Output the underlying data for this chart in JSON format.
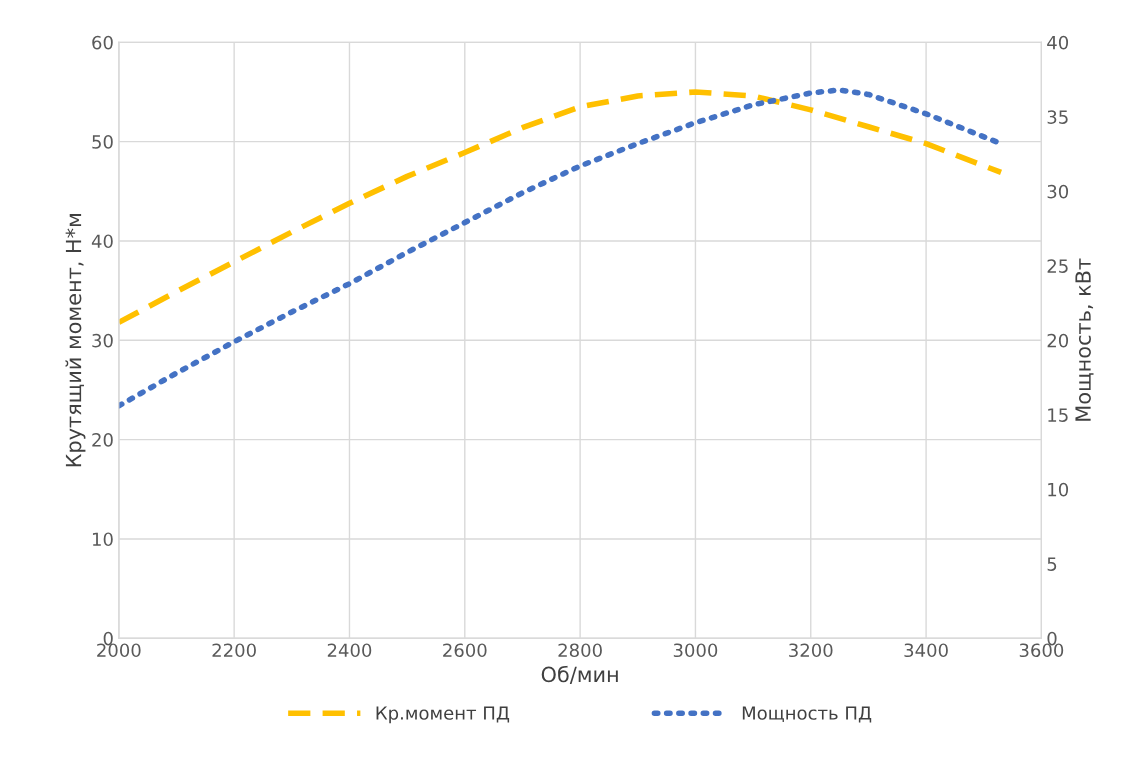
{
  "chart_data": {
    "type": "line",
    "xlabel": "Об/мин",
    "ylabel": "Крутящий момент, Н*м",
    "y2label": "Мощность, кВт",
    "xlim": [
      2000,
      3600
    ],
    "xticks": [
      2000,
      2200,
      2400,
      2600,
      2800,
      3000,
      3200,
      3400,
      3600
    ],
    "ylim": [
      0,
      60
    ],
    "yticks": [
      0,
      10,
      20,
      30,
      40,
      50,
      60
    ],
    "y2lim": [
      0,
      40
    ],
    "y2ticks": [
      0,
      5,
      10,
      15,
      20,
      25,
      30,
      35,
      40
    ],
    "grid": true,
    "legend": "bottom",
    "marker": "none",
    "series": [
      {
        "name": "Кр.момент ПД",
        "color": "#ffc000",
        "line_style": "dashed",
        "x": [
          2000,
          2100,
          2200,
          2300,
          2400,
          2500,
          2600,
          2700,
          2800,
          2900,
          3000,
          3100,
          3200,
          3300,
          3400,
          3530
        ],
        "values": [
          31.8,
          34.9,
          37.9,
          40.9,
          43.8,
          46.5,
          48.9,
          51.4,
          53.5,
          54.6,
          55.0,
          54.6,
          53.2,
          51.5,
          49.8,
          46.9
        ]
      },
      {
        "name": "Мощность ПД",
        "color": "#4472c4",
        "line_style": "dotted",
        "axis": "y2",
        "x": [
          2000,
          2100,
          2200,
          2300,
          2400,
          2500,
          2600,
          2700,
          2800,
          2900,
          3000,
          3100,
          3200,
          3250,
          3300,
          3400,
          3530
        ],
        "values": [
          15.6,
          17.8,
          19.9,
          21.9,
          23.8,
          25.9,
          27.9,
          29.9,
          31.7,
          33.2,
          34.6,
          35.8,
          36.6,
          36.8,
          36.5,
          35.2,
          33.2
        ]
      }
    ]
  }
}
